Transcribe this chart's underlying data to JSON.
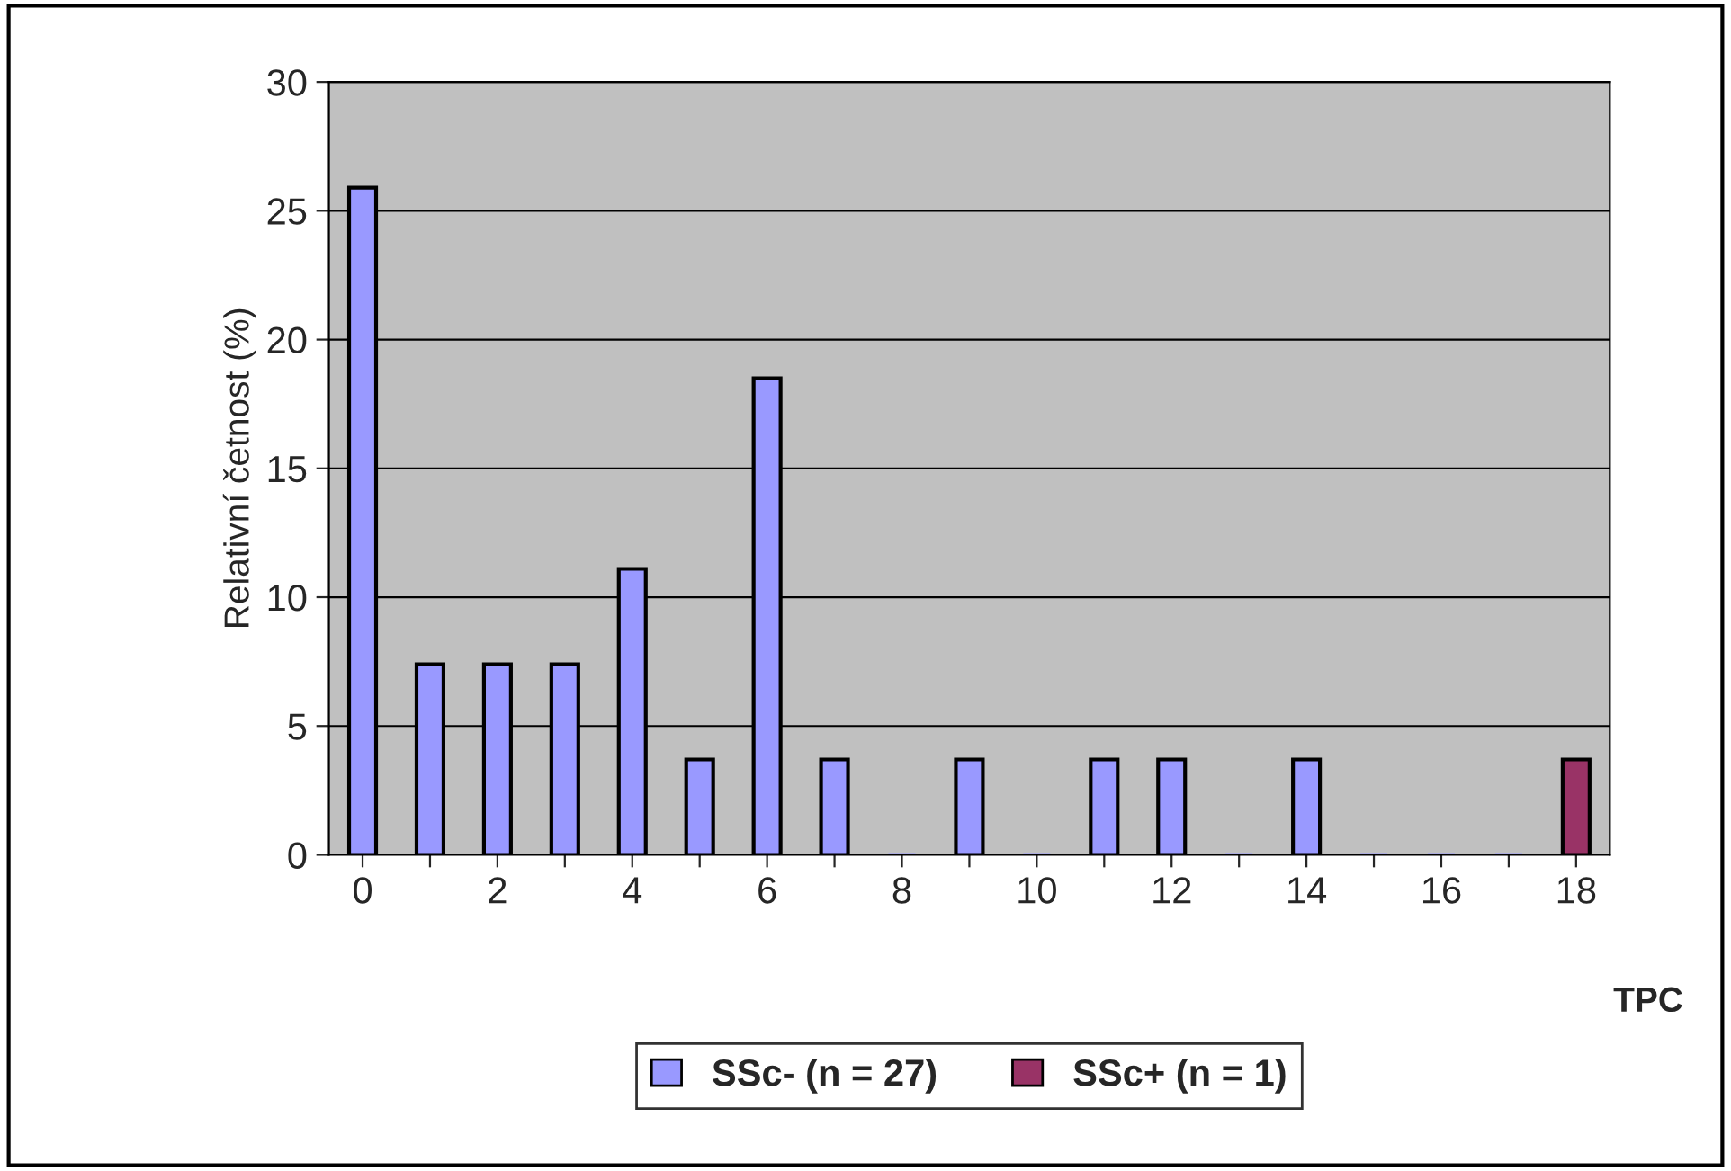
{
  "chart_data": {
    "type": "bar",
    "xlabel": "TPC",
    "ylabel": "Relativní četnost (%)",
    "categories": [
      "0",
      null,
      "2",
      null,
      "4",
      null,
      "6",
      null,
      "8",
      null,
      "10",
      null,
      "12",
      null,
      "14",
      null,
      "16",
      null,
      "18"
    ],
    "series": [
      {
        "name": "SSc- (n = 27)",
        "color": "#9999ff",
        "values": [
          25.9,
          7.4,
          7.4,
          7.4,
          11.1,
          3.7,
          18.5,
          3.7,
          0,
          3.7,
          0,
          3.7,
          3.7,
          0,
          3.7,
          0,
          0,
          0,
          null
        ]
      },
      {
        "name": "SSc+ (n = 1)",
        "color": "#993366",
        "values": [
          null,
          null,
          null,
          null,
          null,
          null,
          null,
          null,
          null,
          null,
          null,
          null,
          null,
          null,
          null,
          null,
          null,
          null,
          3.7
        ]
      }
    ],
    "ylim": [
      0,
      30
    ],
    "yticks": [
      0,
      5,
      10,
      15,
      20,
      25,
      30
    ],
    "grid": "y",
    "legend": "bottom"
  }
}
